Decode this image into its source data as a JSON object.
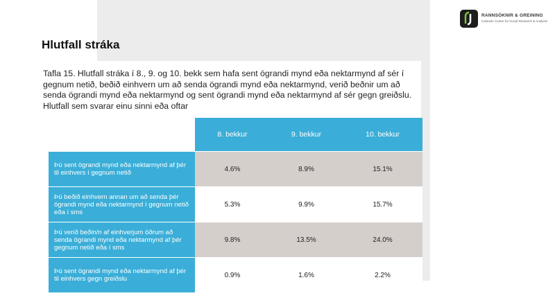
{
  "header": {
    "title": "Hlutfall stráka"
  },
  "logo": {
    "name": "RANNSÓKNIR & GREINING",
    "tagline": "Icelandic Centre for Social Research & Analysis"
  },
  "caption": "Tafla 15. Hlutfall stráka í 8., 9. og 10. bekk sem hafa sent ögrandi mynd eða nektarmynd af sér í gegnum netið, beðið einhvern um að senda ögrandi mynd eða nektarmynd, verið beðnir um að senda ögrandi mynd eða nektarmynd og sent ögrandi mynd eða nektarmynd af sér gegn greiðslu. Hlutfall sem svarar einu sinni eða oftar",
  "table": {
    "columns": [
      "8. bekkur",
      "9. bekkur",
      "10. bekkur"
    ],
    "rows": [
      [
        "Þú sent ögrandi mynd eða nektarmynd af þér til einhvers í gegnum netið",
        "4.6%",
        "8.9%",
        "15.1%"
      ],
      [
        "Þú beðið einhvern annan um að senda þér ögrandi mynd eða nektarmynd í gegnum netið eða í sms",
        "5.3%",
        "9.9%",
        "15.7%"
      ],
      [
        "Þú verið beðin/n af einhverjum öðrum að senda ögrandi mynd eða nektarmynd af þér gegnum netið eða í sms",
        "9.8%",
        "13.5%",
        "24.0%"
      ],
      [
        "Þú sent ögrandi mynd eða nektarmynd af þér til einhvers gegn greiðslu",
        "0.9%",
        "1.6%",
        "2.2%"
      ]
    ]
  }
}
